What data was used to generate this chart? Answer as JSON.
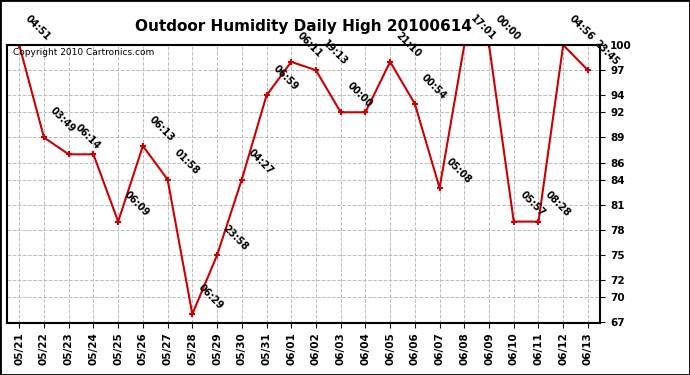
{
  "title": "Outdoor Humidity Daily High 20100614",
  "copyright": "Copyright 2010 Cartronics.com",
  "x_labels": [
    "05/21",
    "05/22",
    "05/23",
    "05/24",
    "05/25",
    "05/26",
    "05/27",
    "05/28",
    "05/29",
    "05/30",
    "05/31",
    "06/01",
    "06/02",
    "06/03",
    "06/04",
    "06/05",
    "06/06",
    "06/07",
    "06/08",
    "06/09",
    "06/10",
    "06/11",
    "06/12",
    "06/13"
  ],
  "y_values": [
    100,
    89,
    87,
    87,
    79,
    88,
    84,
    68,
    75,
    84,
    94,
    98,
    97,
    92,
    92,
    98,
    93,
    83,
    100,
    100,
    79,
    79,
    100,
    97
  ],
  "point_labels": [
    "04:51",
    "03:49",
    "06:14",
    "",
    "06:09",
    "06:13",
    "01:58",
    "06:29",
    "23:58",
    "04:27",
    "06:59",
    "06:11",
    "19:13",
    "00:00",
    "",
    "21:10",
    "00:54",
    "05:08",
    "17:01",
    "00:00",
    "05:57",
    "08:28",
    "04:56",
    "23:45"
  ],
  "ylim": [
    67,
    100
  ],
  "yticks": [
    67,
    70,
    72,
    75,
    78,
    81,
    84,
    86,
    89,
    92,
    94,
    97,
    100
  ],
  "line_color": "#cc0000",
  "marker_color": "#cc0000",
  "bg_color": "#ffffff",
  "grid_color": "#bbbbbb",
  "title_fontsize": 11,
  "label_fontsize": 7,
  "tick_fontsize": 7.5
}
